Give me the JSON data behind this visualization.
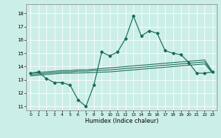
{
  "xlabel": "Humidex (Indice chaleur)",
  "ylabel": "",
  "background_color": "#cceee8",
  "grid_color": "#ffffff",
  "line_color": "#1a6b5a",
  "xlim": [
    -0.5,
    23.5
  ],
  "ylim": [
    10.7,
    18.7
  ],
  "xticks": [
    0,
    1,
    2,
    3,
    4,
    5,
    6,
    7,
    8,
    9,
    10,
    11,
    12,
    13,
    14,
    15,
    16,
    17,
    18,
    19,
    20,
    21,
    22,
    23
  ],
  "yticks": [
    11,
    12,
    13,
    14,
    15,
    16,
    17,
    18
  ],
  "main_line_y": [
    13.5,
    13.6,
    13.1,
    12.8,
    12.8,
    12.6,
    11.5,
    11.0,
    12.6,
    15.1,
    14.8,
    15.1,
    16.1,
    17.8,
    16.3,
    16.7,
    16.5,
    15.2,
    15.0,
    14.9,
    14.3,
    13.5,
    13.5,
    13.6
  ],
  "line2_y": [
    13.5,
    13.55,
    13.6,
    13.65,
    13.7,
    13.7,
    13.75,
    13.75,
    13.8,
    13.85,
    13.9,
    13.95,
    14.0,
    14.05,
    14.1,
    14.15,
    14.2,
    14.25,
    14.3,
    14.35,
    14.4,
    14.45,
    14.5,
    13.6
  ],
  "line3_y": [
    13.4,
    13.45,
    13.5,
    13.55,
    13.6,
    13.6,
    13.65,
    13.65,
    13.7,
    13.72,
    13.75,
    13.8,
    13.85,
    13.9,
    13.95,
    14.0,
    14.05,
    14.1,
    14.15,
    14.2,
    14.25,
    14.3,
    14.35,
    13.55
  ],
  "line4_y": [
    13.3,
    13.35,
    13.4,
    13.45,
    13.5,
    13.5,
    13.52,
    13.53,
    13.55,
    13.58,
    13.6,
    13.65,
    13.7,
    13.75,
    13.8,
    13.85,
    13.9,
    13.95,
    14.0,
    14.05,
    14.1,
    14.15,
    14.2,
    13.5
  ]
}
